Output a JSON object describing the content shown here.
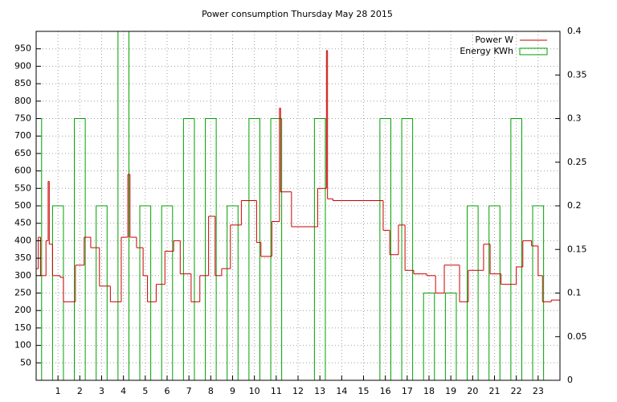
{
  "chart_data": {
    "type": "line",
    "title": "Power consumption Thursday May 28 2015",
    "xlim": [
      0,
      24
    ],
    "xticks": [
      1,
      2,
      3,
      4,
      5,
      6,
      7,
      8,
      9,
      10,
      11,
      12,
      13,
      14,
      15,
      16,
      17,
      18,
      19,
      20,
      21,
      22,
      23
    ],
    "ylim": [
      0,
      1000
    ],
    "yticks": [
      50,
      100,
      150,
      200,
      250,
      300,
      350,
      400,
      450,
      500,
      550,
      600,
      650,
      700,
      750,
      800,
      850,
      900,
      950
    ],
    "y2lim": [
      0,
      0.4
    ],
    "y2ticks": [
      0,
      0.05,
      0.1,
      0.15,
      0.2,
      0.25,
      0.3,
      0.35,
      0.4
    ],
    "grid": true,
    "legend": "top-right",
    "series": [
      {
        "name": "Power W",
        "color": "#cc0000",
        "style": "steps",
        "x": [
          0,
          0.1,
          0.2,
          0.45,
          0.55,
          0.6,
          0.75,
          1.1,
          1.25,
          1.8,
          2.2,
          2.5,
          2.9,
          3.4,
          3.9,
          4.2,
          4.3,
          4.6,
          4.9,
          5.1,
          5.5,
          5.9,
          6.3,
          6.6,
          7.1,
          7.5,
          7.9,
          8.2,
          8.5,
          8.9,
          9.4,
          10.1,
          10.3,
          10.8,
          11.15,
          11.2,
          11.7,
          12.9,
          13.3,
          13.35,
          13.6,
          15.9,
          16.2,
          16.6,
          16.9,
          17.3,
          17.9,
          18.3,
          18.7,
          19.4,
          19.8,
          20.5,
          20.8,
          21.3,
          22,
          22.3,
          22.7,
          23,
          23.2,
          23.6
        ],
        "values": [
          320,
          410,
          300,
          400,
          570,
          390,
          300,
          295,
          225,
          330,
          410,
          380,
          270,
          225,
          410,
          590,
          410,
          380,
          300,
          225,
          275,
          370,
          400,
          305,
          225,
          300,
          470,
          300,
          320,
          445,
          515,
          395,
          355,
          455,
          780,
          540,
          440,
          550,
          945,
          520,
          515,
          430,
          360,
          445,
          315,
          305,
          300,
          250,
          330,
          225,
          315,
          390,
          305,
          275,
          325,
          400,
          385,
          300,
          225,
          230
        ]
      },
      {
        "name": "Energy KWh",
        "color": "#00a000",
        "style": "boxes",
        "axis": "y2",
        "x": [
          0,
          1,
          2,
          3,
          4,
          5,
          6,
          7,
          8,
          9,
          10,
          11,
          12,
          13,
          14,
          15,
          16,
          17,
          18,
          19,
          20,
          21,
          22,
          23
        ],
        "values": [
          0.3,
          0.2,
          0.3,
          0.2,
          0.45,
          0.2,
          0.2,
          0.3,
          0.3,
          0.2,
          0.3,
          0.3,
          0,
          0.3,
          0,
          0,
          0.3,
          0.3,
          0.1,
          0.1,
          0.2,
          0.2,
          0.3,
          0.2
        ]
      }
    ]
  }
}
